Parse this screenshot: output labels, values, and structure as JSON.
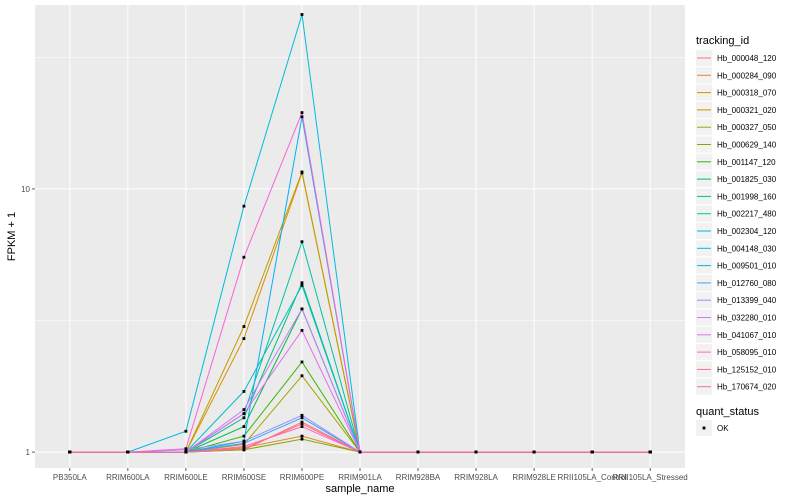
{
  "chart_data": {
    "type": "line",
    "xlabel": "sample_name",
    "ylabel": "FPKM + 1",
    "y_scale": "log10",
    "ylim": [
      0.87,
      50
    ],
    "y_ticks": [
      {
        "value": 1,
        "label": "1"
      },
      {
        "value": 10,
        "label": "10"
      }
    ],
    "categories": [
      "PB350LA",
      "RRIM600LA",
      "RRIM600LE",
      "RRIM600SE",
      "RRIM600PE",
      "RRIM901LA",
      "RRIM928BA",
      "RRIM928LA",
      "RRIM928LE",
      "RRII105LA_Control",
      "RRII105LA_Stressed"
    ],
    "legend_title": "tracking_id",
    "series": [
      {
        "name": "Hb_000048_120",
        "color": "#F8766D",
        "values": [
          1,
          1,
          1.0,
          1.02,
          1.3,
          1,
          1,
          1,
          1,
          1,
          1
        ]
      },
      {
        "name": "Hb_000284_090",
        "color": "#EA8331",
        "values": [
          1,
          1,
          1.0,
          1.04,
          1.15,
          1,
          1,
          1,
          1,
          1,
          1
        ]
      },
      {
        "name": "Hb_000318_070",
        "color": "#D89000",
        "values": [
          1,
          1,
          1.0,
          2.7,
          11.5,
          1,
          1,
          1,
          1,
          1,
          1
        ]
      },
      {
        "name": "Hb_000321_020",
        "color": "#C09B00",
        "values": [
          1,
          1,
          1.0,
          3.0,
          11.6,
          1,
          1,
          1,
          1,
          1,
          1
        ]
      },
      {
        "name": "Hb_000327_050",
        "color": "#A3A500",
        "values": [
          1,
          1,
          1.0,
          1.07,
          1.95,
          1,
          1,
          1,
          1,
          1,
          1
        ]
      },
      {
        "name": "Hb_000629_140",
        "color": "#7CAE00",
        "values": [
          1,
          1,
          1.0,
          1.02,
          1.12,
          1,
          1,
          1,
          1,
          1,
          1
        ]
      },
      {
        "name": "Hb_001147_120",
        "color": "#39B600",
        "values": [
          1,
          1,
          1.0,
          1.15,
          2.2,
          1,
          1,
          1,
          1,
          1,
          1
        ]
      },
      {
        "name": "Hb_001825_030",
        "color": "#00BB4E",
        "values": [
          1,
          1,
          1.0,
          1.25,
          3.5,
          1,
          1,
          1,
          1,
          1,
          1
        ]
      },
      {
        "name": "Hb_001998_160",
        "color": "#00BF7D",
        "values": [
          1,
          1,
          1.0,
          1.35,
          4.4,
          1,
          1,
          1,
          1,
          1,
          1
        ]
      },
      {
        "name": "Hb_002217_480",
        "color": "#00C1A3",
        "values": [
          1,
          1,
          1.0,
          1.4,
          6.3,
          1,
          1,
          1,
          1,
          1,
          1
        ]
      },
      {
        "name": "Hb_002304_120",
        "color": "#00BFC4",
        "values": [
          1,
          1,
          1.0,
          1.7,
          4.3,
          1,
          1,
          1,
          1,
          1,
          1
        ]
      },
      {
        "name": "Hb_004148_030",
        "color": "#00BAE0",
        "values": [
          1,
          1,
          1.2,
          8.6,
          46.0,
          1,
          1,
          1,
          1,
          1,
          1
        ]
      },
      {
        "name": "Hb_009501_010",
        "color": "#00B0F6",
        "values": [
          1,
          1,
          1.0,
          1.1,
          18.8,
          1,
          1,
          1,
          1,
          1,
          1
        ]
      },
      {
        "name": "Hb_012760_080",
        "color": "#35A2FF",
        "values": [
          1,
          1,
          1.0,
          1.08,
          1.35,
          1,
          1,
          1,
          1,
          1,
          1
        ]
      },
      {
        "name": "Hb_013399_040",
        "color": "#9590FF",
        "values": [
          1,
          1,
          1.02,
          1.1,
          1.38,
          1,
          1,
          1,
          1,
          1,
          1
        ]
      },
      {
        "name": "Hb_032280_010",
        "color": "#C77CFF",
        "values": [
          1,
          1,
          1.0,
          1.45,
          3.5,
          1,
          1,
          1,
          1,
          1,
          1
        ]
      },
      {
        "name": "Hb_041067_010",
        "color": "#E76BF3",
        "values": [
          1,
          1,
          1.0,
          1.4,
          2.9,
          1,
          1,
          1,
          1,
          1,
          1
        ]
      },
      {
        "name": "Hb_058095_010",
        "color": "#FA62DB",
        "values": [
          1,
          1,
          1.03,
          5.5,
          19.5,
          1,
          1,
          1,
          1,
          1,
          1
        ]
      },
      {
        "name": "Hb_125152_010",
        "color": "#FF62BC",
        "values": [
          1,
          1,
          1.0,
          1.05,
          1.25,
          1,
          1,
          1,
          1,
          1,
          1
        ]
      },
      {
        "name": "Hb_170674_020",
        "color": "#FF6C91",
        "values": [
          1,
          1,
          1.0,
          1.03,
          1.28,
          1,
          1,
          1,
          1,
          1,
          1
        ]
      }
    ],
    "shape_legend": {
      "title": "quant_status",
      "entries": [
        "OK"
      ]
    },
    "grid": true,
    "legend_position": "right",
    "panel_background": "#EBEBEB"
  }
}
